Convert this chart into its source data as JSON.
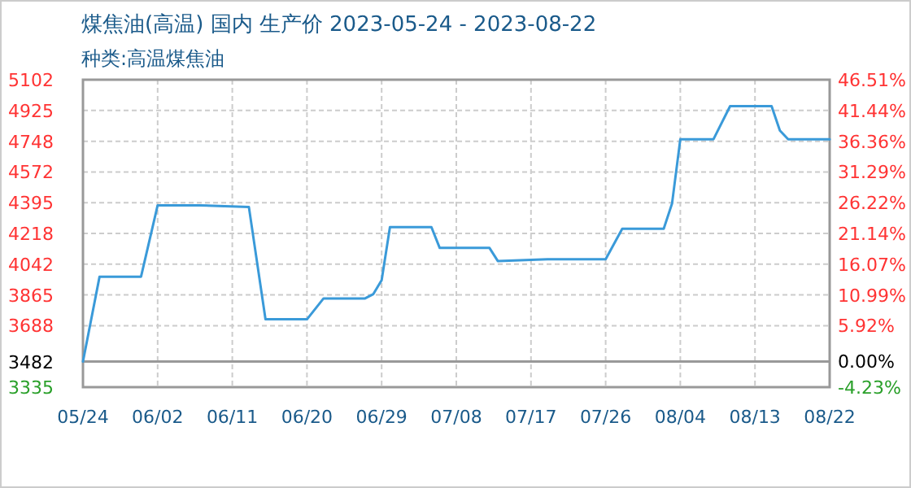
{
  "chart_data": {
    "type": "line",
    "title": "煤焦油(高温) 国内 生产价 2023-05-24 - 2023-08-22",
    "subtitle": "种类:高温煤焦油",
    "x": [
      "2023-05-24",
      "2023-05-26",
      "2023-05-31",
      "2023-06-02",
      "2023-06-07",
      "2023-06-13",
      "2023-06-15",
      "2023-06-20",
      "2023-06-22",
      "2023-06-27",
      "2023-06-28",
      "2023-06-29",
      "2023-06-30",
      "2023-07-05",
      "2023-07-06",
      "2023-07-12",
      "2023-07-13",
      "2023-07-19",
      "2023-07-26",
      "2023-07-28",
      "2023-08-02",
      "2023-08-03",
      "2023-08-04",
      "2023-08-08",
      "2023-08-10",
      "2023-08-15",
      "2023-08-16",
      "2023-08-17",
      "2023-08-22"
    ],
    "series": [
      {
        "color": "#3a9ad9",
        "values": [
          3482,
          3970,
          3970,
          4380,
          4380,
          4370,
          3725,
          3725,
          3845,
          3845,
          3870,
          3950,
          4255,
          4255,
          4135,
          4135,
          4060,
          4070,
          4070,
          4245,
          4245,
          4390,
          4760,
          4760,
          4950,
          4950,
          4810,
          4760,
          4760
        ]
      }
    ],
    "xlim": [
      "2023-05-24",
      "2023-08-22"
    ],
    "xticks": [
      {
        "value": "2023-05-24",
        "label": "05/24"
      },
      {
        "value": "2023-06-02",
        "label": "06/02"
      },
      {
        "value": "2023-06-11",
        "label": "06/11"
      },
      {
        "value": "2023-06-20",
        "label": "06/20"
      },
      {
        "value": "2023-06-29",
        "label": "06/29"
      },
      {
        "value": "2023-07-08",
        "label": "07/08"
      },
      {
        "value": "2023-07-17",
        "label": "07/17"
      },
      {
        "value": "2023-07-26",
        "label": "07/26"
      },
      {
        "value": "2023-08-04",
        "label": "08/04"
      },
      {
        "value": "2023-08-13",
        "label": "08/13"
      },
      {
        "value": "2023-08-22",
        "label": "08/22"
      }
    ],
    "ylim": [
      3335,
      5102
    ],
    "yticks": [
      5102,
      4925,
      4748,
      4572,
      4395,
      4218,
      4042,
      3865,
      3688,
      3482,
      3335
    ],
    "y2lim": [
      -4.23,
      46.51
    ],
    "y2ticks": [
      {
        "value": 46.51,
        "label": "46.51%"
      },
      {
        "value": 41.44,
        "label": "41.44%"
      },
      {
        "value": 36.36,
        "label": "36.36%"
      },
      {
        "value": 31.29,
        "label": "31.29%"
      },
      {
        "value": 26.22,
        "label": "26.22%"
      },
      {
        "value": 21.14,
        "label": "21.14%"
      },
      {
        "value": 16.07,
        "label": "16.07%"
      },
      {
        "value": 10.99,
        "label": "10.99%"
      },
      {
        "value": 5.92,
        "label": "5.92%"
      },
      {
        "value": 0,
        "label": "0.00%"
      },
      {
        "value": -4.23,
        "label": "-4.23%"
      }
    ],
    "ref_lines": [
      {
        "axis": "y",
        "value": 3482,
        "color": "#999999"
      }
    ],
    "grid": true,
    "marker": "none",
    "line_style": "solid"
  }
}
